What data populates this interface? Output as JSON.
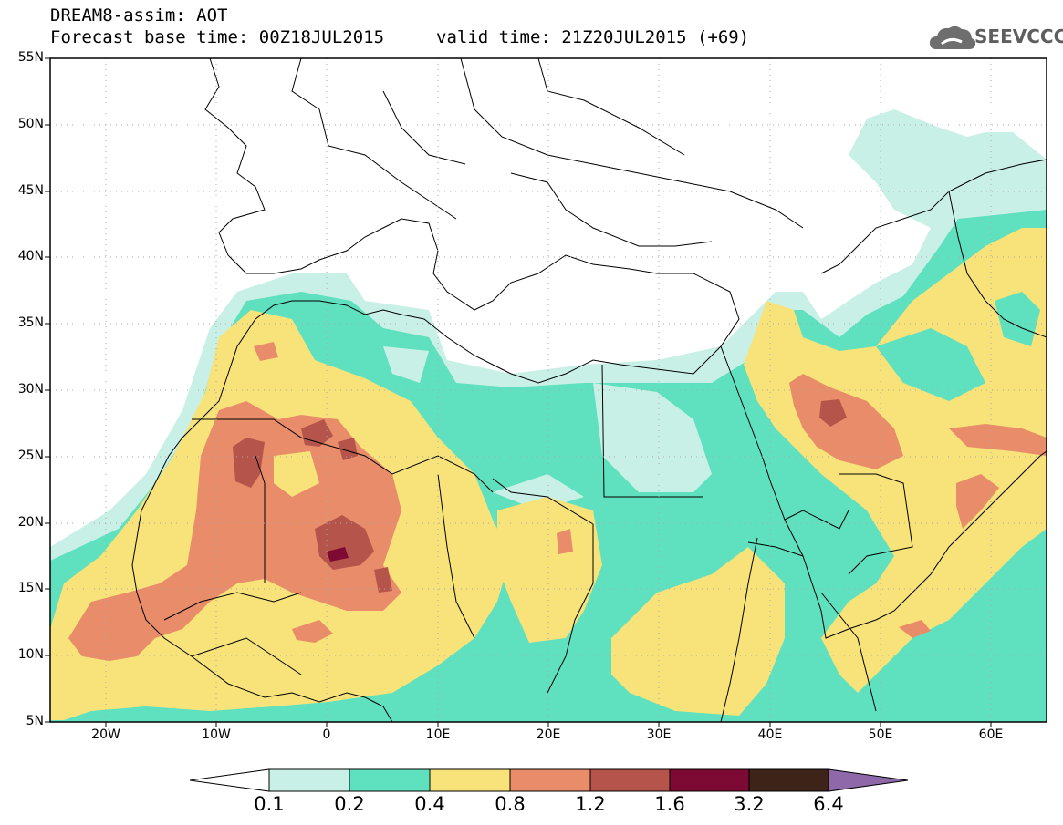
{
  "header": {
    "line1": "DREAM8-assim: AOT",
    "line2_left": "Forecast base time: 00Z18JUL2015",
    "line2_right": "valid time: 21Z20JUL2015 (+69)"
  },
  "logo": {
    "icon": "cloud-icon",
    "text": "SEEVCCC"
  },
  "map_data": {
    "type": "filled-contour-map",
    "lon_range": [
      -25,
      65
    ],
    "lat_range": [
      5,
      55
    ],
    "lat_labels": [
      "55N",
      "50N",
      "45N",
      "40N",
      "35N",
      "30N",
      "25N",
      "20N",
      "15N",
      "10N",
      "5N"
    ],
    "lon_labels": [
      "20W",
      "10W",
      "0",
      "10E",
      "20E",
      "30E",
      "40E",
      "50E",
      "60E"
    ],
    "colorbar": {
      "levels": [
        "0.1",
        "0.2",
        "0.4",
        "0.8",
        "1.2",
        "1.6",
        "3.2",
        "6.4"
      ],
      "colors": [
        "#ffffff",
        "#c9f0e6",
        "#5fe0bf",
        "#f7e37a",
        "#e88c6a",
        "#b5544a",
        "#7d0a32",
        "#3d2318",
        "#8e68a9"
      ]
    }
  }
}
